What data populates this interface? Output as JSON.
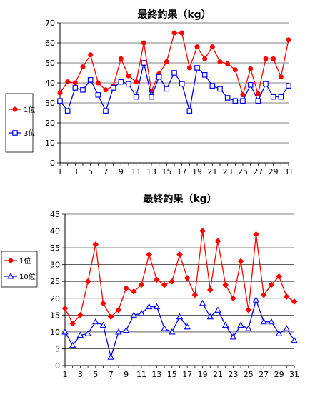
{
  "chart_data": [
    {
      "type": "line",
      "title": "最終釣果（kg）",
      "xlabel": "",
      "ylabel": "",
      "x": [
        1,
        2,
        3,
        4,
        5,
        6,
        7,
        8,
        9,
        10,
        11,
        12,
        13,
        14,
        15,
        16,
        17,
        18,
        19,
        20,
        21,
        22,
        23,
        24,
        25,
        26,
        27,
        28,
        29,
        30,
        31
      ],
      "xticks": [
        1,
        3,
        5,
        7,
        9,
        11,
        13,
        15,
        17,
        19,
        21,
        23,
        25,
        27,
        29,
        31
      ],
      "ylim": [
        0,
        70
      ],
      "yticks": [
        0,
        10,
        20,
        30,
        40,
        50,
        60,
        70
      ],
      "grid": true,
      "legend": "left",
      "series": [
        {
          "name": "1位",
          "color": "#ff0000",
          "marker": "circle",
          "values": [
            35,
            40.5,
            40,
            48,
            54,
            40,
            36.5,
            38.5,
            52,
            43.5,
            40.5,
            60,
            36,
            44.5,
            50.5,
            65,
            65,
            47.5,
            58,
            52,
            58,
            50.5,
            49.5,
            46.5,
            34,
            47,
            34.5,
            52,
            52,
            43,
            61.5
          ]
        },
        {
          "name": "3位",
          "color": "#0000ff",
          "marker": "square",
          "values": [
            31,
            26,
            37.5,
            36.5,
            41.5,
            34,
            26,
            37.5,
            40.5,
            39.5,
            33,
            50,
            33,
            43,
            37,
            45,
            39.5,
            26,
            47.5,
            44,
            38.5,
            37,
            32.5,
            31,
            31,
            39,
            31,
            39.5,
            33,
            33,
            38.5
          ]
        }
      ]
    },
    {
      "type": "line",
      "title": "最終釣果（kg）",
      "xlabel": "",
      "ylabel": "",
      "x": [
        1,
        2,
        3,
        4,
        5,
        6,
        7,
        8,
        9,
        10,
        11,
        12,
        13,
        14,
        15,
        16,
        17,
        18,
        19,
        20,
        21,
        22,
        23,
        24,
        25,
        26,
        27,
        28,
        29,
        30,
        31
      ],
      "xticks": [
        1,
        3,
        5,
        7,
        9,
        11,
        13,
        15,
        17,
        19,
        21,
        23,
        25,
        27,
        29,
        31
      ],
      "ylim": [
        0,
        45
      ],
      "yticks": [
        0,
        5,
        10,
        15,
        20,
        25,
        30,
        35,
        40,
        45
      ],
      "grid": true,
      "legend": "left",
      "series": [
        {
          "name": "1位",
          "color": "#ff0000",
          "marker": "diamond",
          "values": [
            17,
            12.5,
            15,
            25,
            36,
            18.5,
            14.5,
            16.5,
            23,
            22,
            24,
            33,
            25.5,
            24,
            25,
            33,
            26,
            21,
            40,
            22.5,
            37,
            24,
            20,
            31,
            16.5,
            39,
            21,
            24,
            26.5,
            20.5,
            19
          ]
        },
        {
          "name": "10位",
          "color": "#0000ff",
          "marker": "triangle",
          "values": [
            10,
            6,
            9,
            9.5,
            13,
            12,
            2.5,
            10,
            10.5,
            15,
            15.5,
            17.5,
            17.5,
            11,
            10,
            14.5,
            11.5,
            null,
            18.5,
            14.5,
            16.5,
            12,
            8.5,
            12,
            11,
            19.5,
            13,
            13,
            9.5,
            11,
            7.5
          ]
        }
      ]
    }
  ]
}
